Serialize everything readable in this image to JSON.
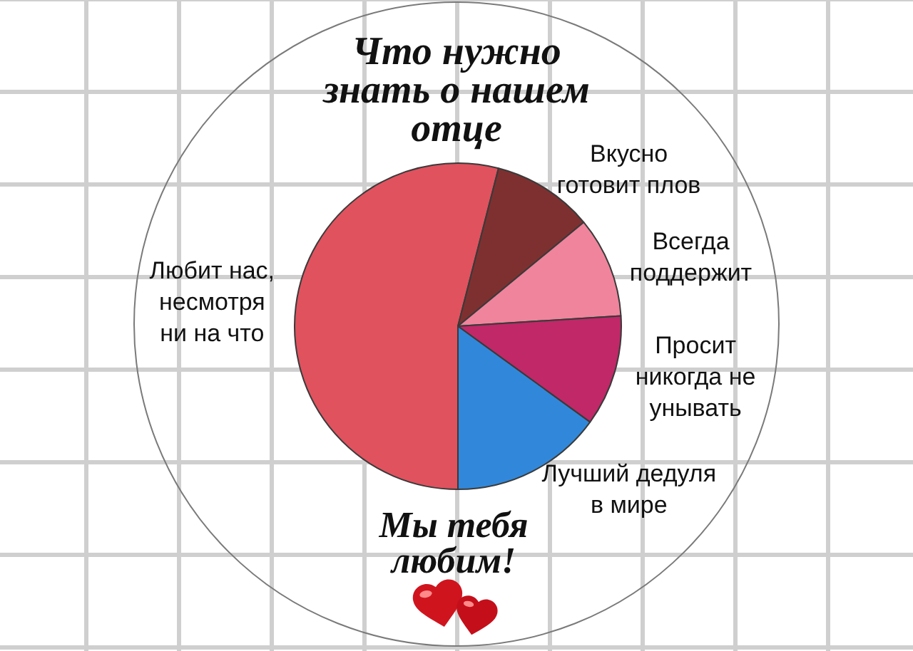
{
  "chart_data": {
    "type": "pie",
    "title": "Что нужно\nзнать о нашем\nотце",
    "categories": [
      "Любит нас,\nнесмотря\nни на что",
      "Вкусно\nготовит плов",
      "Всегда\nподдержит",
      "Просит\nникогда не\nунывать",
      "Лучший дедуля\nв мире"
    ],
    "values": [
      54,
      10,
      10,
      11,
      15
    ],
    "colors": [
      "#e0525e",
      "#7e3030",
      "#f0849c",
      "#c02868",
      "#3188da"
    ],
    "annotations": [
      "Мы тебя\nлюбим!"
    ]
  }
}
